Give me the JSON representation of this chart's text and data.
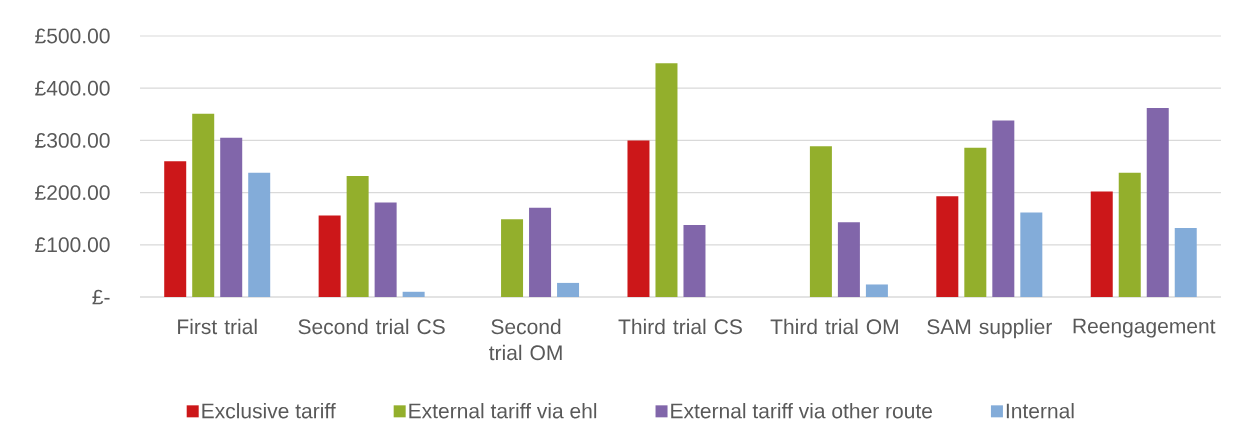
{
  "chart_data": {
    "type": "bar",
    "categories": [
      "First trial",
      "Second trial CS",
      "Second trial OM",
      "Third trial CS",
      "Third trial OM",
      "SAM supplier",
      "Reengagement"
    ],
    "series": [
      {
        "name": "Exclusive tariff",
        "color": "#cc1719",
        "values": [
          260,
          156,
          null,
          300,
          null,
          193,
          202
        ]
      },
      {
        "name": "External tariff via ehl",
        "color": "#93af2c",
        "values": [
          351,
          232,
          149,
          448,
          289,
          286,
          238
        ]
      },
      {
        "name": "External tariff via other route",
        "color": "#8166aa",
        "values": [
          305,
          181,
          171,
          138,
          143,
          338,
          362
        ]
      },
      {
        "name": "Internal",
        "color": "#83acd9",
        "values": [
          238,
          10,
          27,
          null,
          24,
          162,
          132
        ]
      }
    ],
    "ylim": [
      0,
      500
    ],
    "yticks": [
      {
        "value": 0,
        "label": "£-"
      },
      {
        "value": 100,
        "label": "£100.00"
      },
      {
        "value": 200,
        "label": "£200.00"
      },
      {
        "value": 300,
        "label": "£300.00"
      },
      {
        "value": 400,
        "label": "£400.00"
      },
      {
        "value": 500,
        "label": "£500.00"
      }
    ],
    "grid": "y",
    "legend": "bottom"
  }
}
